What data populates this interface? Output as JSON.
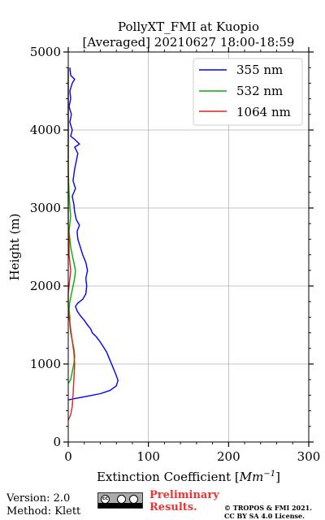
{
  "chart_data": {
    "type": "line",
    "title_line1": "PollyXT_FMI at Kuopio",
    "title_line2": "[Averaged] 20210627 18:00-18:59",
    "xlabel_prefix": "Extinction Coefficient [",
    "xlabel_unit": "Mm",
    "xlabel_exp": "−1",
    "xlabel_suffix": "]",
    "ylabel": "Height (m)",
    "xlim": [
      0,
      300
    ],
    "ylim": [
      0,
      5000
    ],
    "xticks": [
      "0",
      "100",
      "200",
      "300"
    ],
    "yticks": [
      "0",
      "1000",
      "2000",
      "3000",
      "4000",
      "5000"
    ],
    "xtick_values": [
      0,
      100,
      200,
      300
    ],
    "ytick_values": [
      0,
      1000,
      2000,
      3000,
      4000,
      5000
    ],
    "grid": true,
    "legend_position": "top-right",
    "series": [
      {
        "name": "355 nm",
        "color": "#0000ff",
        "points": [
          [
            0,
            540
          ],
          [
            10,
            560
          ],
          [
            25,
            590
          ],
          [
            40,
            620
          ],
          [
            52,
            660
          ],
          [
            60,
            720
          ],
          [
            62,
            790
          ],
          [
            60,
            850
          ],
          [
            56,
            950
          ],
          [
            52,
            1050
          ],
          [
            48,
            1150
          ],
          [
            45,
            1200
          ],
          [
            40,
            1280
          ],
          [
            35,
            1350
          ],
          [
            30,
            1400
          ],
          [
            28,
            1450
          ],
          [
            24,
            1500
          ],
          [
            20,
            1560
          ],
          [
            15,
            1620
          ],
          [
            11,
            1680
          ],
          [
            9,
            1740
          ],
          [
            12,
            1780
          ],
          [
            18,
            1830
          ],
          [
            22,
            1900
          ],
          [
            23,
            2000
          ],
          [
            22,
            2100
          ],
          [
            24,
            2200
          ],
          [
            22,
            2300
          ],
          [
            18,
            2400
          ],
          [
            15,
            2500
          ],
          [
            12,
            2600
          ],
          [
            11,
            2700
          ],
          [
            14,
            2780
          ],
          [
            10,
            2850
          ],
          [
            8,
            2950
          ],
          [
            7,
            3050
          ],
          [
            5,
            3150
          ],
          [
            9,
            3250
          ],
          [
            6,
            3350
          ],
          [
            8,
            3500
          ],
          [
            10,
            3600
          ],
          [
            12,
            3700
          ],
          [
            8,
            3780
          ],
          [
            14,
            3820
          ],
          [
            8,
            3880
          ],
          [
            3,
            3920
          ],
          [
            5,
            4000
          ],
          [
            2,
            4100
          ],
          [
            4,
            4200
          ],
          [
            1,
            4300
          ],
          [
            3,
            4400
          ],
          [
            2,
            4500
          ],
          [
            5,
            4600
          ],
          [
            8,
            4650
          ],
          [
            3,
            4700
          ],
          [
            2,
            4800
          ]
        ]
      },
      {
        "name": "532 nm",
        "color": "#00b000",
        "points": [
          [
            0,
            750
          ],
          [
            3,
            800
          ],
          [
            5,
            900
          ],
          [
            7,
            1000
          ],
          [
            8,
            1100
          ],
          [
            7,
            1200
          ],
          [
            5,
            1300
          ],
          [
            3,
            1400
          ],
          [
            2,
            1500
          ],
          [
            2,
            1600
          ],
          [
            1,
            1700
          ],
          [
            2,
            1800
          ],
          [
            4,
            1900
          ],
          [
            6,
            2000
          ],
          [
            8,
            2100
          ],
          [
            9,
            2200
          ],
          [
            7,
            2300
          ],
          [
            5,
            2400
          ],
          [
            3,
            2500
          ],
          [
            2,
            2600
          ],
          [
            1,
            2700
          ],
          [
            2,
            2800
          ],
          [
            3,
            2900
          ],
          [
            2,
            3000
          ],
          [
            1,
            3200
          ],
          [
            0,
            3500
          ],
          [
            0,
            4000
          ],
          [
            0,
            4500
          ],
          [
            0,
            4800
          ]
        ]
      },
      {
        "name": "1064 nm",
        "color": "#dd2222",
        "points": [
          [
            0,
            280
          ],
          [
            3,
            350
          ],
          [
            5,
            450
          ],
          [
            6,
            600
          ],
          [
            7,
            800
          ],
          [
            8,
            1000
          ],
          [
            7,
            1150
          ],
          [
            5,
            1300
          ],
          [
            3,
            1450
          ],
          [
            1,
            1600
          ],
          [
            0,
            1750
          ],
          [
            0,
            1900
          ],
          [
            1,
            2000
          ],
          [
            2,
            2100
          ],
          [
            3,
            2200
          ],
          [
            2,
            2300
          ],
          [
            1,
            2400
          ],
          [
            1,
            2500
          ],
          [
            1,
            2600
          ],
          [
            0,
            2800
          ],
          [
            0,
            3000
          ],
          [
            0,
            3500
          ],
          [
            0,
            4000
          ],
          [
            0,
            4500
          ],
          [
            0,
            4800
          ]
        ]
      }
    ]
  },
  "footer": {
    "version": "Version: 2.0",
    "method": "Method: Klett",
    "preliminary_line1": "Preliminary",
    "preliminary_line2": "Results.",
    "copyright_line1": "© TROPOS & FMI 2021.",
    "copyright_line2": "CC BY SA 4.0 License.",
    "cc_badge_text": "cc"
  }
}
